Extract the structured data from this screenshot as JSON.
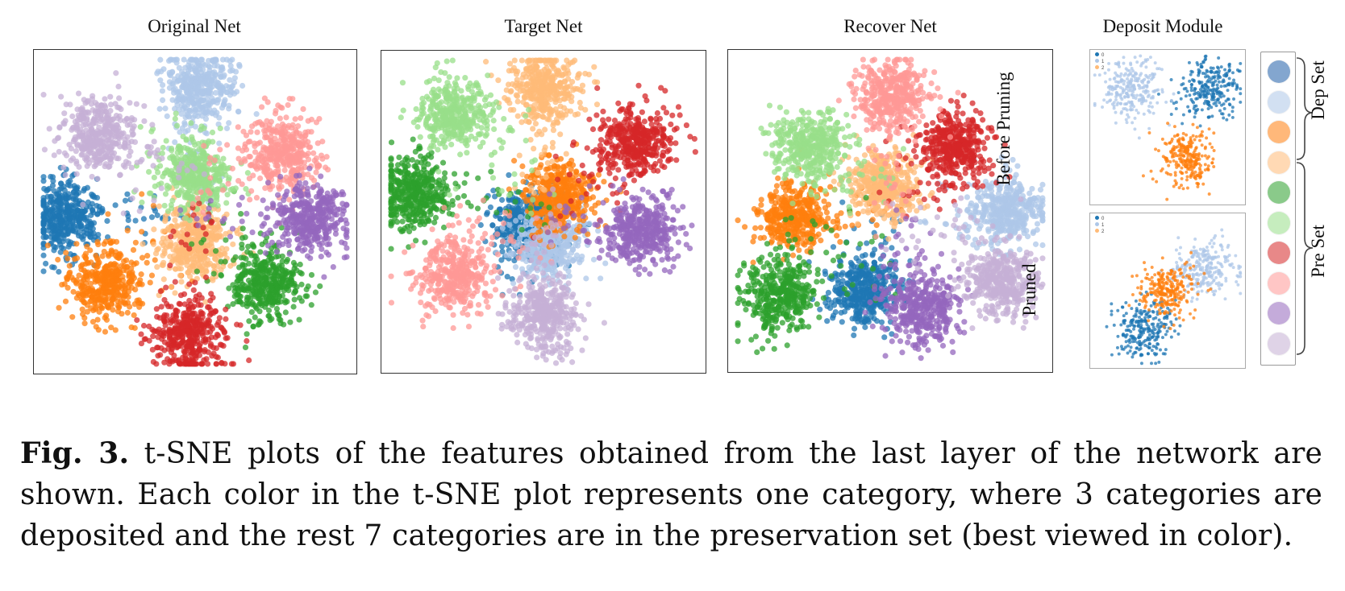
{
  "panels": [
    {
      "title": "Original Net"
    },
    {
      "title": "Target Net"
    },
    {
      "title": "Recover Net"
    }
  ],
  "deposit": {
    "title": "Deposit Module",
    "before_label": "Before Pruning",
    "pruned_label": "Pruned",
    "mini_legend": [
      "0",
      "1",
      "2"
    ]
  },
  "legend": {
    "dep_label": "Dep Set",
    "pre_label": "Pre Set",
    "colors": [
      "#1f5fa8",
      "#aec7e8",
      "#ff7f0e",
      "#ffbb78",
      "#2ca02c",
      "#98df8a",
      "#d62728",
      "#ff9896",
      "#9467bd",
      "#c5b0d5"
    ]
  },
  "caption": {
    "fig_label": "Fig. 3.",
    "text": " t-SNE plots of the features obtained from the last layer of the network are shown. Each color in the t-SNE plot represents one category, where 3 categories are deposited and the rest 7 categories are in the preservation set (best viewed in color)."
  },
  "chart_data": [
    {
      "type": "scatter",
      "title": "Original Net",
      "clusters": [
        {
          "category": 0,
          "color": "#1f77b4",
          "center": [
            0.1,
            0.52
          ]
        },
        {
          "category": 1,
          "color": "#aec7e8",
          "center": [
            0.52,
            0.12
          ]
        },
        {
          "category": 2,
          "color": "#ff7f0e",
          "center": [
            0.22,
            0.72
          ]
        },
        {
          "category": 3,
          "color": "#ffbb78",
          "center": [
            0.5,
            0.6
          ]
        },
        {
          "category": 4,
          "color": "#2ca02c",
          "center": [
            0.72,
            0.72
          ]
        },
        {
          "category": 5,
          "color": "#98df8a",
          "center": [
            0.5,
            0.38
          ]
        },
        {
          "category": 6,
          "color": "#d62728",
          "center": [
            0.48,
            0.88
          ]
        },
        {
          "category": 7,
          "color": "#ff9896",
          "center": [
            0.78,
            0.32
          ]
        },
        {
          "category": 8,
          "color": "#9467bd",
          "center": [
            0.86,
            0.52
          ]
        },
        {
          "category": 9,
          "color": "#c5b0d5",
          "center": [
            0.2,
            0.26
          ]
        }
      ]
    },
    {
      "type": "scatter",
      "title": "Target Net",
      "clusters": [
        {
          "category": 0,
          "color": "#1f77b4",
          "center": [
            0.45,
            0.55
          ]
        },
        {
          "category": 1,
          "color": "#aec7e8",
          "center": [
            0.52,
            0.6
          ]
        },
        {
          "category": 2,
          "color": "#ff7f0e",
          "center": [
            0.55,
            0.45
          ]
        },
        {
          "category": 3,
          "color": "#ffbb78",
          "center": [
            0.5,
            0.12
          ]
        },
        {
          "category": 4,
          "color": "#2ca02c",
          "center": [
            0.1,
            0.44
          ]
        },
        {
          "category": 5,
          "color": "#98df8a",
          "center": [
            0.22,
            0.2
          ]
        },
        {
          "category": 6,
          "color": "#d62728",
          "center": [
            0.78,
            0.28
          ]
        },
        {
          "category": 7,
          "color": "#ff9896",
          "center": [
            0.22,
            0.7
          ]
        },
        {
          "category": 8,
          "color": "#9467bd",
          "center": [
            0.8,
            0.56
          ]
        },
        {
          "category": 9,
          "color": "#c5b0d5",
          "center": [
            0.5,
            0.82
          ]
        }
      ]
    },
    {
      "type": "scatter",
      "title": "Recover Net",
      "clusters": [
        {
          "category": 0,
          "color": "#1f77b4",
          "center": [
            0.42,
            0.75
          ]
        },
        {
          "category": 1,
          "color": "#aec7e8",
          "center": [
            0.86,
            0.5
          ]
        },
        {
          "category": 2,
          "color": "#ff7f0e",
          "center": [
            0.2,
            0.52
          ]
        },
        {
          "category": 3,
          "color": "#ffbb78",
          "center": [
            0.48,
            0.42
          ]
        },
        {
          "category": 4,
          "color": "#2ca02c",
          "center": [
            0.16,
            0.76
          ]
        },
        {
          "category": 5,
          "color": "#98df8a",
          "center": [
            0.25,
            0.3
          ]
        },
        {
          "category": 6,
          "color": "#d62728",
          "center": [
            0.7,
            0.3
          ]
        },
        {
          "category": 7,
          "color": "#ff9896",
          "center": [
            0.5,
            0.14
          ]
        },
        {
          "category": 8,
          "color": "#9467bd",
          "center": [
            0.6,
            0.8
          ]
        },
        {
          "category": 9,
          "color": "#c5b0d5",
          "center": [
            0.84,
            0.72
          ]
        }
      ]
    },
    {
      "type": "scatter",
      "title": "Before Pruning",
      "clusters": [
        {
          "category": 0,
          "color": "#1f77b4",
          "center": [
            0.78,
            0.25
          ]
        },
        {
          "category": 1,
          "color": "#aec7e8",
          "center": [
            0.25,
            0.25
          ]
        },
        {
          "category": 2,
          "color": "#ff7f0e",
          "center": [
            0.62,
            0.7
          ]
        }
      ]
    },
    {
      "type": "scatter",
      "title": "Pruned",
      "clusters": [
        {
          "category": 0,
          "color": "#1f77b4",
          "center": [
            0.35,
            0.75
          ]
        },
        {
          "category": 1,
          "color": "#aec7e8",
          "center": [
            0.75,
            0.35
          ]
        },
        {
          "category": 2,
          "color": "#ff7f0e",
          "center": [
            0.5,
            0.5
          ]
        }
      ]
    }
  ]
}
